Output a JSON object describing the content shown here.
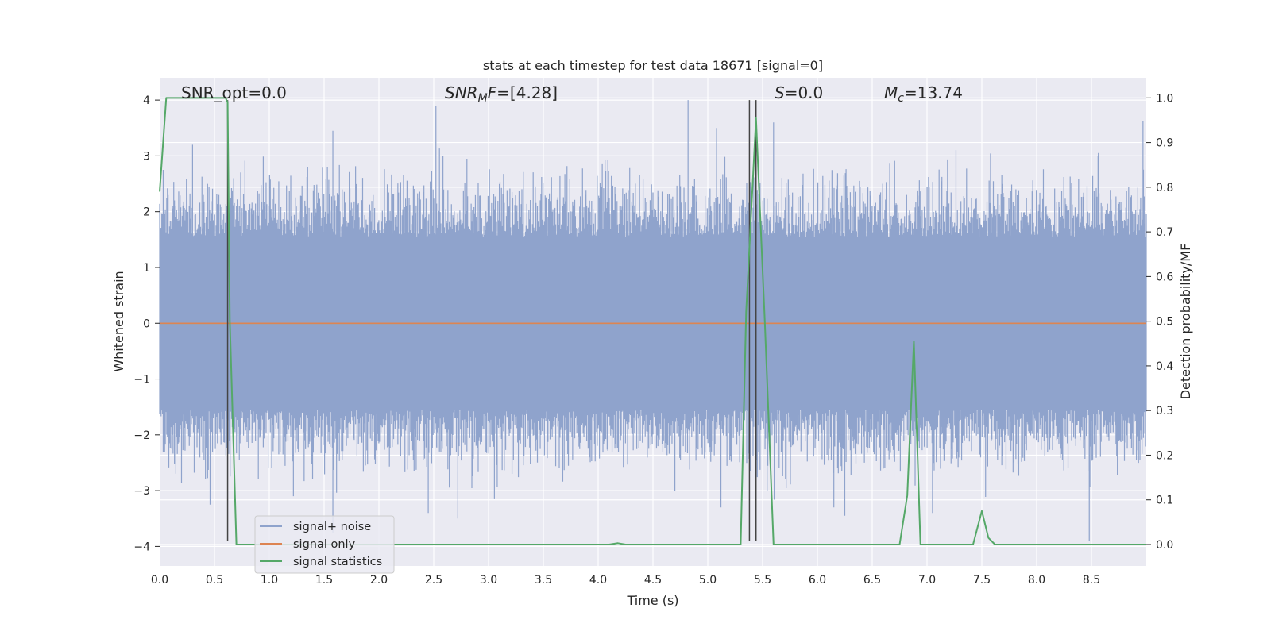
{
  "chart_data": {
    "type": "line",
    "title": "stats at each timestep for test data 18671 [signal=0]",
    "xlabel": "Time (s)",
    "ylabel_left": "Whitened strain",
    "ylabel_right": "Detection probability/MF",
    "xlim": [
      0.0,
      9.0
    ],
    "ylim_left": [
      -4.35,
      4.4
    ],
    "ylim_right": [
      -0.048,
      1.045
    ],
    "xticks": [
      "0.0",
      "0.5",
      "1.0",
      "1.5",
      "2.0",
      "2.5",
      "3.0",
      "3.5",
      "4.0",
      "4.5",
      "5.0",
      "5.5",
      "6.0",
      "6.5",
      "7.0",
      "7.5",
      "8.0",
      "8.5"
    ],
    "xtick_values": [
      0.0,
      0.5,
      1.0,
      1.5,
      2.0,
      2.5,
      3.0,
      3.5,
      4.0,
      4.5,
      5.0,
      5.5,
      6.0,
      6.5,
      7.0,
      7.5,
      8.0,
      8.5
    ],
    "yticks_left": [
      "−4",
      "−3",
      "−2",
      "−1",
      "0",
      "1",
      "2",
      "3",
      "4"
    ],
    "ytick_values_left": [
      -4,
      -3,
      -2,
      -1,
      0,
      1,
      2,
      3,
      4
    ],
    "yticks_right": [
      "0.0",
      "0.1",
      "0.2",
      "0.3",
      "0.4",
      "0.5",
      "0.6",
      "0.7",
      "0.8",
      "0.9",
      "1.0"
    ],
    "ytick_values_right": [
      0.0,
      0.1,
      0.2,
      0.3,
      0.4,
      0.5,
      0.6,
      0.7,
      0.8,
      0.9,
      1.0
    ],
    "grid": true,
    "legend_position": "bottom-left",
    "annotations": {
      "snr_opt": "SNR_opt=0.0",
      "snr_mf_main": "SNR",
      "snr_mf_sub": "M",
      "snr_mf_suffix": "F",
      "snr_mf_value": "=[4.28]",
      "s_main": "S",
      "s_value": "=0.0",
      "mc_main": "M",
      "mc_sub": "c",
      "mc_value": "=13.74"
    },
    "series": [
      {
        "name": "signal+ noise",
        "axis": "left",
        "color": "#8fa3cc",
        "style": "noise",
        "envelope_spikes": [
          {
            "x": 0.3,
            "y": 3.2
          },
          {
            "x": 1.58,
            "y": 3.45
          },
          {
            "x": 2.52,
            "y": 3.9
          },
          {
            "x": 4.82,
            "y": 4.0
          },
          {
            "x": 5.08,
            "y": 3.5
          },
          {
            "x": 5.6,
            "y": 3.6
          },
          {
            "x": 8.97,
            "y": 3.62
          },
          {
            "x": 8.56,
            "y": 3.0
          },
          {
            "x": 0.46,
            "y": -3.25
          },
          {
            "x": 1.58,
            "y": -3.75
          },
          {
            "x": 2.72,
            "y": -3.5
          },
          {
            "x": 2.45,
            "y": -3.4
          },
          {
            "x": 5.12,
            "y": -3.3
          },
          {
            "x": 6.15,
            "y": -3.3
          },
          {
            "x": 6.25,
            "y": -3.45
          },
          {
            "x": 8.48,
            "y": -3.9
          },
          {
            "x": 7.05,
            "y": -3.4
          },
          {
            "x": 4.7,
            "y": -3.0
          },
          {
            "x": 1.22,
            "y": -3.1
          }
        ]
      },
      {
        "name": "signal only",
        "axis": "left",
        "color": "#dd8452",
        "x": [
          0.0,
          9.0
        ],
        "y": [
          0.0,
          0.0
        ]
      },
      {
        "name": "signal statistics",
        "axis": "right",
        "color": "#55a868",
        "x": [
          0.0,
          0.06,
          0.1,
          0.2,
          0.5,
          0.6,
          0.62,
          0.64,
          0.7,
          4.1,
          4.18,
          4.25,
          5.3,
          5.35,
          5.44,
          5.52,
          5.6,
          6.75,
          6.82,
          6.88,
          6.94,
          7.42,
          7.5,
          7.56,
          7.62,
          9.0
        ],
        "y": [
          0.79,
          1.0,
          1.0,
          1.0,
          1.0,
          1.0,
          0.99,
          0.5,
          0.0,
          0.0,
          0.003,
          0.0,
          0.0,
          0.52,
          0.955,
          0.5,
          0.0,
          0.0,
          0.11,
          0.455,
          0.0,
          0.0,
          0.075,
          0.015,
          0.0,
          0.0
        ]
      }
    ],
    "markers": [
      {
        "x": 0.62,
        "ymin": -3.9,
        "ymax": 4.0,
        "color": "#444444"
      },
      {
        "x": 5.38,
        "ymin": -3.9,
        "ymax": 4.0,
        "color": "#444444"
      },
      {
        "x": 5.44,
        "ymin": -3.9,
        "ymax": 4.0,
        "color": "#444444"
      }
    ]
  }
}
